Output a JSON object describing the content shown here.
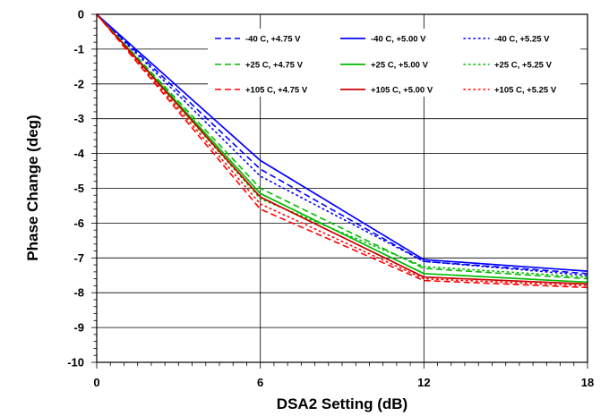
{
  "chart_data": {
    "type": "line",
    "title": "",
    "xlabel": "DSA2 Setting (dB)",
    "ylabel": "Phase Change (deg)",
    "xlim": [
      0,
      18
    ],
    "ylim": [
      -10,
      0
    ],
    "xticks": [
      "0",
      "6",
      "12",
      "18"
    ],
    "yticks": [
      "0",
      "-1",
      "-2",
      "-3",
      "-4",
      "-5",
      "-6",
      "-7",
      "-8",
      "-9",
      "-10"
    ],
    "grid": true,
    "legend_position": "top-right",
    "x": [
      0,
      6,
      12,
      18
    ],
    "series": [
      {
        "name": "-40 C, +4.75 V",
        "color": "#0000ff",
        "dash": "dashed",
        "values": [
          0,
          -4.45,
          -7.1,
          -7.45
        ]
      },
      {
        "name": "-40 C, +5.00 V",
        "color": "#0000ff",
        "dash": "solid",
        "values": [
          0,
          -4.2,
          -7.05,
          -7.38
        ]
      },
      {
        "name": "-40 C, +5.25 V",
        "color": "#0000ff",
        "dash": "dotted",
        "values": [
          0,
          -4.65,
          -7.1,
          -7.5
        ]
      },
      {
        "name": "+25 C, +4.75 V",
        "color": "#00bb00",
        "dash": "dashed",
        "values": [
          0,
          -5.0,
          -7.3,
          -7.6
        ]
      },
      {
        "name": "+25 C, +5.00 V",
        "color": "#00bb00",
        "dash": "solid",
        "values": [
          0,
          -5.15,
          -7.45,
          -7.7
        ]
      },
      {
        "name": "+25 C, +5.25 V",
        "color": "#00bb00",
        "dash": "dotted",
        "values": [
          0,
          -5.3,
          -7.25,
          -7.55
        ]
      },
      {
        "name": "+105 C, +4.75 V",
        "color": "#ff0000",
        "dash": "dashed",
        "values": [
          0,
          -5.6,
          -7.65,
          -7.85
        ]
      },
      {
        "name": "+105 C, +5.00 V",
        "color": "#cc0000",
        "dash": "solid",
        "values": [
          0,
          -5.25,
          -7.55,
          -7.75
        ]
      },
      {
        "name": "+105 C, +5.25 V",
        "color": "#ff0000",
        "dash": "dotted",
        "values": [
          0,
          -5.45,
          -7.6,
          -7.8
        ]
      }
    ]
  }
}
